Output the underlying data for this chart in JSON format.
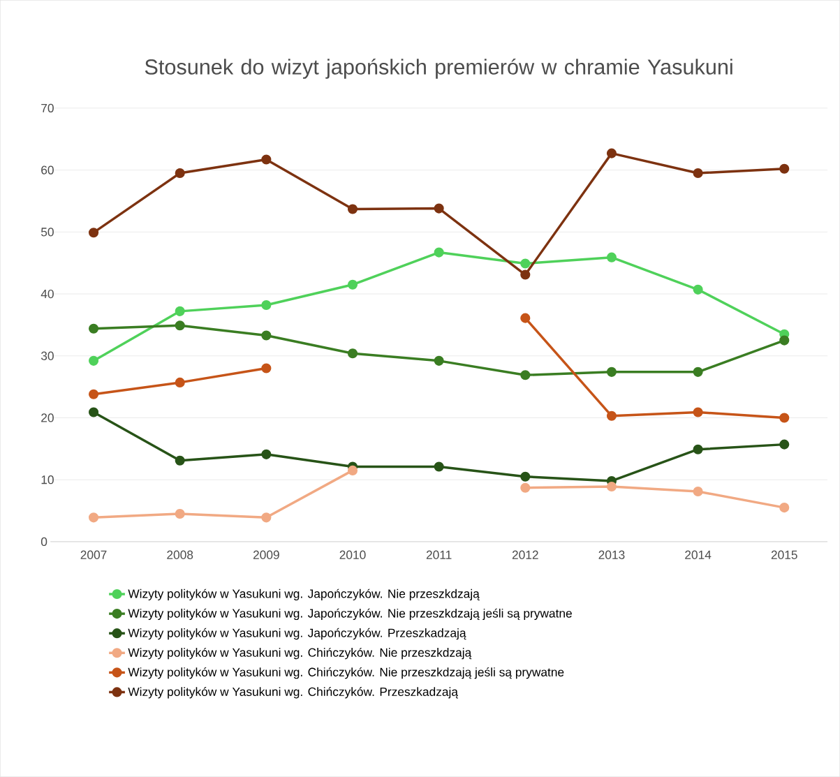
{
  "chart_data": {
    "type": "line",
    "title": "Stosunek do wizyt japońskich premierów w chramie Yasukuni",
    "categories": [
      "2007",
      "2008",
      "2009",
      "2010",
      "2011",
      "2012",
      "2013",
      "2014",
      "2015"
    ],
    "series": [
      {
        "name": "Wizyty polityków w Yasukuni wg. Japończyków. Nie przeszkdzają",
        "color": "#4fd15a",
        "values": [
          29.2,
          37.2,
          38.2,
          41.5,
          46.7,
          44.9,
          45.9,
          40.7,
          33.5
        ]
      },
      {
        "name": "Wizyty polityków w Yasukuni wg. Japończyków. Nie przeszkdzają jeśli są prywatne",
        "color": "#3a7d22",
        "values": [
          34.4,
          34.9,
          33.3,
          30.4,
          29.2,
          26.9,
          27.4,
          27.4,
          32.5
        ]
      },
      {
        "name": "Wizyty polityków w Yasukuni wg. Japończyków. Przeszkadzają",
        "color": "#275317",
        "values": [
          20.9,
          13.1,
          14.1,
          12.1,
          12.1,
          10.5,
          9.8,
          14.9,
          15.7
        ]
      },
      {
        "name": "Wizyty polityków w Yasukuni wg. Chińczyków. Nie przeszkdzają",
        "color": "#f1a983",
        "values": [
          3.9,
          4.5,
          3.9,
          11.5,
          null,
          8.7,
          8.9,
          8.1,
          5.5
        ]
      },
      {
        "name": "Wizyty polityków w Yasukuni wg. Chińczyków. Nie przeszkdzają jeśli są prywatne",
        "color": "#c65418",
        "values": [
          23.8,
          25.7,
          28.0,
          null,
          null,
          36.1,
          20.3,
          20.9,
          20.0
        ]
      },
      {
        "name": "Wizyty polityków w Yasukuni wg. Chińczyków. Przeszkadzają",
        "color": "#7d3210",
        "values": [
          49.9,
          59.5,
          61.7,
          53.7,
          53.8,
          43.1,
          62.7,
          59.5,
          60.2
        ]
      }
    ],
    "ylim": [
      0,
      70
    ],
    "yticks": [
      0,
      10,
      20,
      30,
      40,
      50,
      60,
      70
    ],
    "grid": "y",
    "legend": "bottom",
    "marker": "circle",
    "line_style": "solid"
  }
}
